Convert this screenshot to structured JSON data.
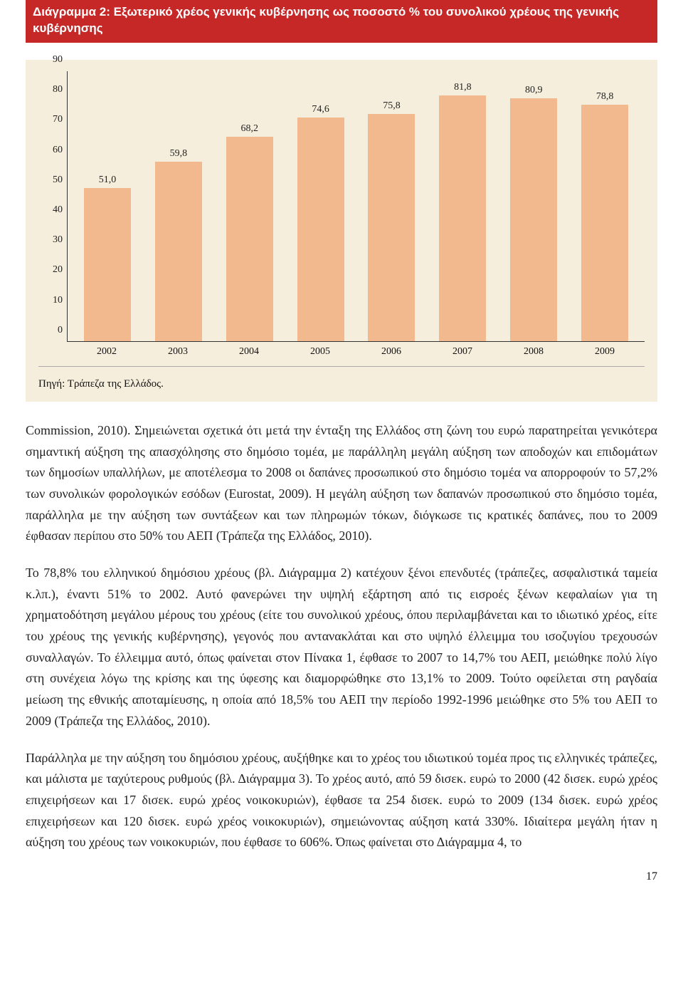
{
  "titleBand": "Διάγραμμα 2: Εξωτερικό χρέος γενικής κυβέρνησης ως ποσοστό % του συνολικού χρέους της γενικής κυβέρνησης",
  "chart": {
    "type": "bar",
    "ylim": [
      0,
      90
    ],
    "ytick_step": 10,
    "yticks": [
      "0",
      "10",
      "20",
      "30",
      "40",
      "50",
      "60",
      "70",
      "80",
      "90"
    ],
    "categories": [
      "2002",
      "2003",
      "2004",
      "2005",
      "2006",
      "2007",
      "2008",
      "2009"
    ],
    "values": [
      51.0,
      59.8,
      68.2,
      74.6,
      75.8,
      81.8,
      80.9,
      78.8
    ],
    "value_labels": [
      "51,0",
      "59,8",
      "68,2",
      "74,6",
      "75,8",
      "81,8",
      "80,9",
      "78,8"
    ],
    "bar_color": "#f2b98f",
    "background_color": "#f6eedc",
    "axis_color": "#333333",
    "label_fontsize": 14,
    "bar_width": 0.66
  },
  "source": "Πηγή: Τράπεζα της Ελλάδος.",
  "paragraphs": {
    "p1": "Commission, 2010). Σημειώνεται σχετικά ότι μετά την ένταξη της Ελλάδος στη ζώνη του ευρώ παρατηρείται γενικότερα σημαντική αύξηση της απασχόλησης στο δημόσιο τομέα, με παράλληλη μεγάλη αύξηση των αποδοχών και επιδομάτων των δημοσίων υπαλλήλων, με αποτέλεσμα το 2008 οι δαπάνες προσωπικού στο δημόσιο τομέα να απορροφούν το 57,2% των συνολικών φορολογικών εσόδων (Eurostat, 2009). Η μεγάλη αύξηση των δαπανών προσωπικού στο δημόσιο τομέα, παράλληλα με την αύξηση των συντάξεων και των πληρωμών τόκων, διόγκωσε τις κρατικές δαπάνες, που το 2009 έφθασαν περίπου στο 50% του ΑΕΠ (Τράπεζα της Ελλάδος, 2010).",
    "p2": "Το 78,8% του ελληνικού δημόσιου χρέους (βλ. Διάγραμμα 2) κατέχουν ξένοι επενδυτές (τράπεζες, ασφαλιστικά ταμεία κ.λπ.), έναντι 51% το 2002. Αυτό φανερώνει την υψηλή εξάρτηση από τις εισροές ξένων κεφαλαίων για τη χρηματοδότηση μεγάλου μέρους του χρέους (είτε του συνολικού χρέους, όπου περιλαμβάνεται και το ιδιωτικό χρέος, είτε του χρέους της γενικής κυβέρνησης), γεγονός που αντανακλάται και στο υψηλό έλλειμμα του ισοζυγίου τρεχουσών συναλλαγών. Το έλλειμμα αυτό, όπως φαίνεται στον Πίνακα 1, έφθασε το 2007 το 14,7% του ΑΕΠ, μειώθηκε πολύ λίγο στη συνέχεια λόγω της κρίσης και της ύφεσης και διαμορφώθηκε στο 13,1% το 2009. Τούτο οφείλεται στη ραγδαία μείωση της εθνικής αποταμίευσης, η οποία από 18,5% του ΑΕΠ την περίοδο 1992-1996 μειώθηκε στο 5% του ΑΕΠ το 2009 (Τράπεζα της Ελλάδος, 2010).",
    "p3": "Παράλληλα με την αύξηση του δημόσιου χρέους, αυξήθηκε και το χρέος του ιδιωτικού τομέα προς τις ελληνικές τράπεζες, και μάλιστα με ταχύτερους ρυθμούς (βλ. Διάγραμμα 3). Το χρέος αυτό, από 59 δισεκ. ευρώ το 2000 (42 δισεκ. ευρώ χρέος επιχειρήσεων και 17 δισεκ. ευρώ χρέος νοικοκυριών), έφθασε τα 254 δισεκ. ευρώ το 2009 (134 δισεκ. ευρώ χρέος επιχειρήσεων και 120 δισεκ. ευρώ χρέος νοικοκυριών), σημειώνοντας αύξηση κατά 330%. Ιδιαίτερα μεγάλη ήταν η αύξηση του χρέους των νοικοκυριών, που έφθασε το 606%. Όπως φαίνεται στο Διάγραμμα 4, το"
  },
  "pageNumber": "17"
}
